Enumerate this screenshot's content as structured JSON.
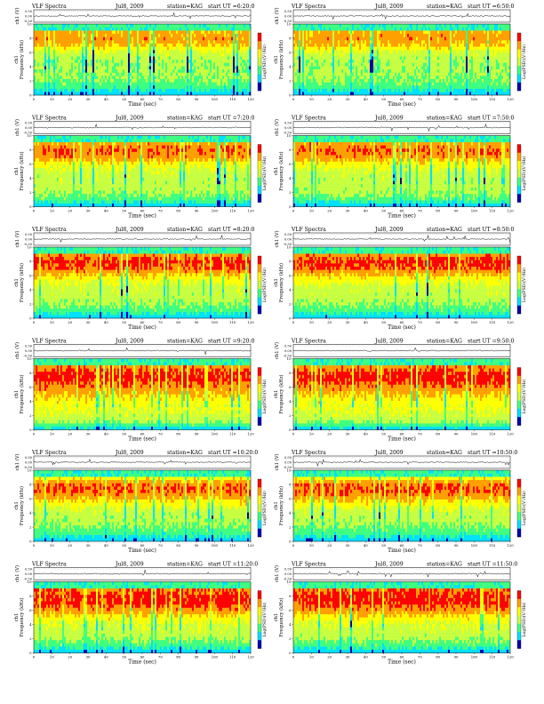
{
  "layout": {
    "columns": 2,
    "rows": 6
  },
  "colors": {
    "very_low": "#0000b0",
    "low": "#00e0ff",
    "mid_low": "#40ff80",
    "mid": "#c8ff40",
    "mid_high": "#ffff00",
    "high": "#ffa000",
    "very_high": "#ff0000",
    "panel_background": "#39d6c9"
  },
  "chart_data": [
    {
      "type": "heatmap",
      "title": "VLF Spectra",
      "date": "Jul8, 2009",
      "station": "station=KAG",
      "start": "start UT =6:20:0",
      "wave_ylabel": "ch1 (V)",
      "wave_ticks": [
        "0.50",
        "0.00",
        "-0.50"
      ],
      "ylabel_top": "ch1",
      "ylabel": "Frequency (kHz)",
      "yticks": [
        "0",
        "2",
        "4",
        "6",
        "8",
        "10"
      ],
      "ylim": [
        0,
        10
      ],
      "xlabel": "Time (sec)",
      "xticks": [
        "0",
        "10",
        "20",
        "30",
        "40",
        "50",
        "60",
        "70",
        "80",
        "90",
        "100",
        "110",
        "120"
      ],
      "xlim": [
        0,
        120
      ],
      "colorbar_label": "Log(PSD)(V²/Hz)",
      "z_profile": [
        0.16,
        0.34,
        0.42,
        0.46,
        0.45,
        0.47,
        0.55,
        0.72,
        0.8,
        0.74,
        0.42
      ]
    },
    {
      "type": "heatmap",
      "title": "VLF Spectra",
      "date": "Jul8, 2009",
      "station": "station=KAG",
      "start": "start UT =6:50:0",
      "wave_ylabel": "ch1 (V)",
      "wave_ticks": [
        "0.50",
        "0.00",
        "-0.50"
      ],
      "ylabel_top": "ch1",
      "ylabel": "Frequency (kHz)",
      "yticks": [
        "0",
        "2",
        "4",
        "6",
        "8",
        "10"
      ],
      "ylim": [
        0,
        10
      ],
      "xlabel": "Time (sec)",
      "xticks": [
        "0",
        "10",
        "20",
        "30",
        "40",
        "50",
        "60",
        "70",
        "80",
        "90",
        "100",
        "110",
        "120"
      ],
      "xlim": [
        0,
        120
      ],
      "colorbar_label": "Log(PSD)(V²/Hz)",
      "z_profile": [
        0.16,
        0.34,
        0.42,
        0.46,
        0.45,
        0.47,
        0.55,
        0.72,
        0.8,
        0.74,
        0.42
      ]
    },
    {
      "type": "heatmap",
      "title": "VLF Spectra",
      "date": "Jul8, 2009",
      "station": "station=KAG",
      "start": "start UT =7:20:0",
      "wave_ylabel": "ch1 (V)",
      "wave_ticks": [
        "0.50",
        "0.00",
        "-0.50"
      ],
      "ylabel_top": "ch1",
      "ylabel": "Frequency (kHz)",
      "yticks": [
        "0",
        "2",
        "4",
        "6",
        "8",
        "10"
      ],
      "ylim": [
        0,
        10
      ],
      "xlabel": "Time (sec)",
      "xticks": [
        "0",
        "10",
        "20",
        "30",
        "40",
        "50",
        "60",
        "70",
        "80",
        "90",
        "100",
        "110",
        "120"
      ],
      "xlim": [
        0,
        120
      ],
      "colorbar_label": "Log(PSD)(V²/Hz)",
      "z_profile": [
        0.16,
        0.38,
        0.46,
        0.5,
        0.5,
        0.54,
        0.64,
        0.8,
        0.86,
        0.76,
        0.44
      ]
    },
    {
      "type": "heatmap",
      "title": "VLF Spectra",
      "date": "Jul8, 2009",
      "station": "station=KAG",
      "start": "start UT =7:50:0",
      "wave_ylabel": "ch1 (V)",
      "wave_ticks": [
        "0.50",
        "0.00",
        "-0.50"
      ],
      "ylabel_top": "ch1",
      "ylabel": "Frequency (kHz)",
      "yticks": [
        "0",
        "2",
        "4",
        "6",
        "8",
        "10"
      ],
      "ylim": [
        0,
        10
      ],
      "xlabel": "Time (sec)",
      "xticks": [
        "0",
        "10",
        "20",
        "30",
        "40",
        "50",
        "60",
        "70",
        "80",
        "90",
        "100",
        "110",
        "120"
      ],
      "xlim": [
        0,
        120
      ],
      "colorbar_label": "Log(PSD)(V²/Hz)",
      "z_profile": [
        0.16,
        0.38,
        0.46,
        0.5,
        0.5,
        0.54,
        0.64,
        0.8,
        0.86,
        0.76,
        0.44
      ]
    },
    {
      "type": "heatmap",
      "title": "VLF Spectra",
      "date": "Jul8, 2009",
      "station": "station=KAG",
      "start": "start UT =8:20:0",
      "wave_ylabel": "ch1 (V)",
      "wave_ticks": [
        "0.50",
        "0.00",
        "-0.50"
      ],
      "ylabel_top": "ch1",
      "ylabel": "Frequency (kHz)",
      "yticks": [
        "0",
        "2",
        "4",
        "6",
        "8",
        "10"
      ],
      "ylim": [
        0,
        10
      ],
      "xlabel": "Time (sec)",
      "xticks": [
        "0",
        "10",
        "20",
        "30",
        "40",
        "50",
        "60",
        "70",
        "80",
        "90",
        "100",
        "110",
        "120"
      ],
      "xlim": [
        0,
        120
      ],
      "colorbar_label": "Log(PSD)(V²/Hz)",
      "z_profile": [
        0.16,
        0.36,
        0.44,
        0.5,
        0.52,
        0.58,
        0.7,
        0.86,
        0.9,
        0.8,
        0.46
      ]
    },
    {
      "type": "heatmap",
      "title": "VLF Spectra",
      "date": "Jul8, 2009",
      "station": "station=KAG",
      "start": "start UT =8:50:0",
      "wave_ylabel": "ch1 (V)",
      "wave_ticks": [
        "0.50",
        "0.00",
        "-0.50"
      ],
      "ylabel_top": "ch1",
      "ylabel": "Frequency (kHz)",
      "yticks": [
        "0",
        "2",
        "4",
        "6",
        "8",
        "10"
      ],
      "ylim": [
        0,
        10
      ],
      "xlabel": "Time (sec)",
      "xticks": [
        "0",
        "10",
        "20",
        "30",
        "40",
        "50",
        "60",
        "70",
        "80",
        "90",
        "100",
        "110",
        "120"
      ],
      "xlim": [
        0,
        120
      ],
      "colorbar_label": "Log(PSD)(V²/Hz)",
      "z_profile": [
        0.16,
        0.36,
        0.44,
        0.5,
        0.52,
        0.58,
        0.7,
        0.86,
        0.9,
        0.8,
        0.46
      ]
    },
    {
      "type": "heatmap",
      "title": "VLF Spectra",
      "date": "Jul8, 2009",
      "station": "station=KAG",
      "start": "start UT =9:20:0",
      "wave_ylabel": "ch1 (V)",
      "wave_ticks": [
        "0.50",
        "0.00",
        "-0.50"
      ],
      "ylabel_top": "ch1",
      "ylabel": "Frequency (kHz)",
      "yticks": [
        "0",
        "2",
        "4",
        "6",
        "8",
        "10"
      ],
      "ylim": [
        0,
        10
      ],
      "xlabel": "Time (sec)",
      "xticks": [
        "0",
        "10",
        "20",
        "30",
        "40",
        "50",
        "60",
        "70",
        "80",
        "90",
        "100",
        "110",
        "120"
      ],
      "xlim": [
        0,
        120
      ],
      "colorbar_label": "Log(PSD)(V²/Hz)",
      "z_profile": [
        0.18,
        0.44,
        0.54,
        0.6,
        0.64,
        0.72,
        0.82,
        0.9,
        0.9,
        0.8,
        0.46
      ]
    },
    {
      "type": "heatmap",
      "title": "VLF Spectra",
      "date": "Jul8, 2009",
      "station": "station=KAG",
      "start": "start UT =9:50:0",
      "wave_ylabel": "ch1 (V)",
      "wave_ticks": [
        "0.50",
        "0.00",
        "-0.50"
      ],
      "ylabel_top": "ch1",
      "ylabel": "Frequency (kHz)",
      "yticks": [
        "0",
        "2",
        "4",
        "6",
        "8",
        "10"
      ],
      "ylim": [
        0,
        10
      ],
      "xlabel": "Time (sec)",
      "xticks": [
        "0",
        "10",
        "20",
        "30",
        "40",
        "50",
        "60",
        "70",
        "80",
        "90",
        "100",
        "110",
        "120"
      ],
      "xlim": [
        0,
        120
      ],
      "colorbar_label": "Log(PSD)(V²/Hz)",
      "z_profile": [
        0.18,
        0.44,
        0.54,
        0.6,
        0.64,
        0.72,
        0.82,
        0.9,
        0.9,
        0.8,
        0.46
      ]
    },
    {
      "type": "heatmap",
      "title": "VLF Spectra",
      "date": "Jul8, 2009",
      "station": "station=KAG",
      "start": "start UT =10:20:0",
      "wave_ylabel": "ch1 (V)",
      "wave_ticks": [
        "0.50",
        "0.00",
        "-0.50"
      ],
      "ylabel_top": "ch1",
      "ylabel": "Frequency (kHz)",
      "yticks": [
        "0",
        "2",
        "4",
        "6",
        "8",
        "10"
      ],
      "ylim": [
        0,
        10
      ],
      "xlabel": "Time (sec)",
      "xticks": [
        "0",
        "10",
        "20",
        "30",
        "40",
        "50",
        "60",
        "70",
        "80",
        "90",
        "100",
        "110",
        "120"
      ],
      "xlim": [
        0,
        120
      ],
      "colorbar_label": "Log(PSD)(V²/Hz)",
      "z_profile": [
        0.16,
        0.34,
        0.42,
        0.48,
        0.5,
        0.6,
        0.74,
        0.86,
        0.84,
        0.64,
        0.4
      ]
    },
    {
      "type": "heatmap",
      "title": "VLF Spectra",
      "date": "Jul8, 2009",
      "station": "station=KAG",
      "start": "start UT =10:50:0",
      "wave_ylabel": "ch1 (V)",
      "wave_ticks": [
        "0.50",
        "0.00",
        "-0.50"
      ],
      "ylabel_top": "ch1",
      "ylabel": "Frequency (kHz)",
      "yticks": [
        "0",
        "2",
        "4",
        "6",
        "8",
        "10"
      ],
      "ylim": [
        0,
        10
      ],
      "xlabel": "Time (sec)",
      "xticks": [
        "0",
        "10",
        "20",
        "30",
        "40",
        "50",
        "60",
        "70",
        "80",
        "90",
        "100",
        "110",
        "120"
      ],
      "xlim": [
        0,
        120
      ],
      "colorbar_label": "Log(PSD)(V²/Hz)",
      "z_profile": [
        0.16,
        0.34,
        0.42,
        0.48,
        0.5,
        0.6,
        0.74,
        0.86,
        0.84,
        0.64,
        0.4
      ]
    },
    {
      "type": "heatmap",
      "title": "VLF Spectra",
      "date": "Jul8, 2009",
      "station": "station=KAG",
      "start": "start UT =11:20:0",
      "wave_ylabel": "ch1 (V)",
      "wave_ticks": [
        "0.50",
        "0.00",
        "-0.50"
      ],
      "ylabel_top": "ch1",
      "ylabel": "Frequency (kHz)",
      "yticks": [
        "0",
        "2",
        "4",
        "6",
        "8",
        "10"
      ],
      "ylim": [
        0,
        10
      ],
      "xlabel": "Time (sec)",
      "xticks": [
        "0",
        "10",
        "20",
        "30",
        "40",
        "50",
        "60",
        "70",
        "80",
        "90",
        "100",
        "110",
        "120"
      ],
      "xlim": [
        0,
        120
      ],
      "colorbar_label": "Log(PSD)(V²/Hz)",
      "z_profile": [
        0.16,
        0.36,
        0.46,
        0.52,
        0.56,
        0.66,
        0.8,
        0.9,
        0.9,
        0.84,
        0.7
      ]
    },
    {
      "type": "heatmap",
      "title": "VLF Spectra",
      "date": "Jul8, 2009",
      "station": "station=KAG",
      "start": "start UT =11:50:0",
      "wave_ylabel": "ch1 (V)",
      "wave_ticks": [
        "0.50",
        "0.00",
        "-0.50"
      ],
      "ylabel_top": "ch1",
      "ylabel": "Frequency (kHz)",
      "yticks": [
        "0",
        "2",
        "4",
        "6",
        "8",
        "10"
      ],
      "ylim": [
        0,
        10
      ],
      "xlabel": "Time (sec)",
      "xticks": [
        "0",
        "10",
        "20",
        "30",
        "40",
        "50",
        "60",
        "70",
        "80",
        "90",
        "100",
        "110",
        "120"
      ],
      "xlim": [
        0,
        120
      ],
      "colorbar_label": "Log(PSD)(V²/Hz)",
      "z_profile": [
        0.16,
        0.36,
        0.46,
        0.52,
        0.56,
        0.66,
        0.8,
        0.9,
        0.9,
        0.84,
        0.7
      ]
    }
  ]
}
